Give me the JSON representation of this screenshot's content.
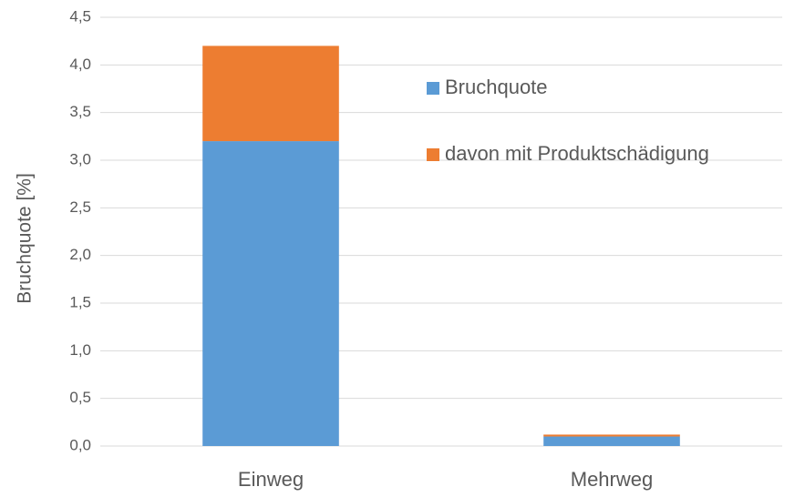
{
  "chart_data": {
    "type": "stacked_bar",
    "y_label": "Bruchquote [%]",
    "categories": [
      "Einweg",
      "Mehrweg"
    ],
    "series": [
      {
        "name": "Bruchquote",
        "color": "#5b9bd5",
        "values": [
          3.2,
          0.1
        ]
      },
      {
        "name": "davon mit Produktschädigung",
        "color": "#ed7d31",
        "values": [
          1.0,
          0.02
        ]
      }
    ],
    "ylim": [
      0,
      4.5
    ],
    "yticks": [
      {
        "value": 0,
        "label": "0,0"
      },
      {
        "value": 0.5,
        "label": "0,5"
      },
      {
        "value": 1,
        "label": "1,0"
      },
      {
        "value": 1.5,
        "label": "1,5"
      },
      {
        "value": 2,
        "label": "2,0"
      },
      {
        "value": 2.5,
        "label": "2,5"
      },
      {
        "value": 3,
        "label": "3,0"
      },
      {
        "value": 3.5,
        "label": "3,5"
      },
      {
        "value": 4,
        "label": "4,0"
      },
      {
        "value": 4.5,
        "label": "4,5"
      }
    ],
    "grid": true
  }
}
